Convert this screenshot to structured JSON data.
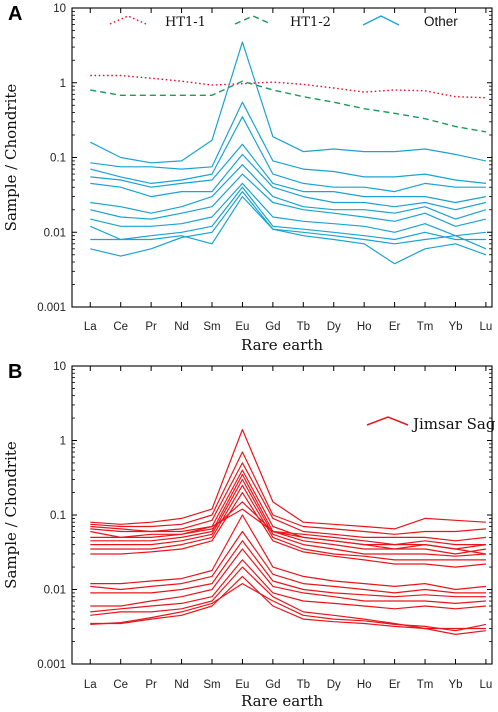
{
  "chart_data": [
    {
      "type": "line",
      "panel_label": "A",
      "title": "",
      "xlabel": "Rare earth",
      "ylabel": "Sample / Chondrite",
      "y_scale": "log",
      "ylim": [
        0.001,
        10
      ],
      "y_tick_labels": [
        "0.001",
        "0.01",
        "0.1",
        "1",
        "10"
      ],
      "grid": false,
      "legend_position": "top",
      "categories": [
        "La",
        "Ce",
        "Pr",
        "Nd",
        "Sm",
        "Eu",
        "Gd",
        "Tb",
        "Dy",
        "Ho",
        "Er",
        "Tm",
        "Yb",
        "Lu"
      ],
      "series": [
        {
          "name": "HT1-1",
          "color": "#e8102e",
          "dash": "dot",
          "show_in_legend": true,
          "values": [
            1.25,
            1.25,
            1.15,
            1.05,
            0.93,
            0.97,
            1.02,
            0.95,
            0.85,
            0.75,
            0.8,
            0.78,
            0.65,
            0.63
          ]
        },
        {
          "name": "HT1-2",
          "color": "#1c9a5a",
          "dash": "dash",
          "show_in_legend": true,
          "values": [
            0.8,
            0.68,
            0.68,
            0.68,
            0.68,
            1.05,
            0.8,
            0.65,
            0.55,
            0.45,
            0.39,
            0.33,
            0.26,
            0.22
          ]
        },
        {
          "name": "Other",
          "color": "#1aa3d4",
          "dash": "solid",
          "show_in_legend": true,
          "values": [
            0.16,
            0.1,
            0.085,
            0.09,
            0.17,
            3.5,
            0.19,
            0.12,
            0.13,
            0.12,
            0.12,
            0.13,
            0.11,
            0.09
          ]
        },
        {
          "name": "Other",
          "color": "#1aa3d4",
          "dash": "solid",
          "show_in_legend": false,
          "values": [
            0.085,
            0.075,
            0.075,
            0.07,
            0.075,
            0.55,
            0.09,
            0.07,
            0.065,
            0.055,
            0.055,
            0.06,
            0.05,
            0.045
          ]
        },
        {
          "name": "Other",
          "color": "#1aa3d4",
          "dash": "solid",
          "show_in_legend": false,
          "values": [
            0.07,
            0.055,
            0.045,
            0.05,
            0.06,
            0.35,
            0.06,
            0.045,
            0.04,
            0.04,
            0.035,
            0.045,
            0.04,
            0.04
          ]
        },
        {
          "name": "Other",
          "color": "#1aa3d4",
          "dash": "solid",
          "show_in_legend": false,
          "values": [
            0.055,
            0.05,
            0.04,
            0.045,
            0.05,
            0.15,
            0.045,
            0.035,
            0.035,
            0.03,
            0.03,
            0.03,
            0.025,
            0.03
          ]
        },
        {
          "name": "Other",
          "color": "#1aa3d4",
          "dash": "solid",
          "show_in_legend": false,
          "values": [
            0.045,
            0.04,
            0.03,
            0.035,
            0.035,
            0.11,
            0.04,
            0.03,
            0.025,
            0.025,
            0.022,
            0.025,
            0.02,
            0.025
          ]
        },
        {
          "name": "Other",
          "color": "#1aa3d4",
          "dash": "solid",
          "show_in_legend": false,
          "values": [
            0.025,
            0.022,
            0.018,
            0.022,
            0.03,
            0.08,
            0.03,
            0.022,
            0.02,
            0.02,
            0.018,
            0.022,
            0.015,
            0.02
          ]
        },
        {
          "name": "Other",
          "color": "#1aa3d4",
          "dash": "solid",
          "show_in_legend": false,
          "values": [
            0.02,
            0.016,
            0.015,
            0.018,
            0.022,
            0.06,
            0.025,
            0.02,
            0.018,
            0.016,
            0.014,
            0.018,
            0.012,
            0.015
          ]
        },
        {
          "name": "Other",
          "color": "#1aa3d4",
          "dash": "solid",
          "show_in_legend": false,
          "values": [
            0.015,
            0.012,
            0.012,
            0.013,
            0.016,
            0.045,
            0.016,
            0.014,
            0.013,
            0.012,
            0.01,
            0.013,
            0.009,
            0.01
          ]
        },
        {
          "name": "Other",
          "color": "#1aa3d4",
          "dash": "solid",
          "show_in_legend": false,
          "values": [
            0.012,
            0.008,
            0.009,
            0.01,
            0.012,
            0.04,
            0.012,
            0.011,
            0.01,
            0.009,
            0.008,
            0.01,
            0.008,
            0.008
          ]
        },
        {
          "name": "Other",
          "color": "#1aa3d4",
          "dash": "solid",
          "show_in_legend": false,
          "values": [
            0.008,
            0.008,
            0.008,
            0.009,
            0.007,
            0.03,
            0.011,
            0.009,
            0.008,
            0.007,
            0.0038,
            0.006,
            0.007,
            0.005
          ]
        },
        {
          "name": "Other",
          "color": "#1aa3d4",
          "dash": "solid",
          "show_in_legend": false,
          "values": [
            0.006,
            0.0048,
            0.006,
            0.0085,
            0.01,
            0.035,
            0.011,
            0.01,
            0.009,
            0.008,
            0.007,
            0.008,
            0.009,
            0.006
          ]
        }
      ]
    },
    {
      "type": "line",
      "panel_label": "B",
      "title": "",
      "xlabel": "Rare earth",
      "ylabel": "Sample / Chondrite",
      "y_scale": "log",
      "ylim": [
        0.001,
        10
      ],
      "y_tick_labels": [
        "0.001",
        "0.01",
        "0.1",
        "1",
        "10"
      ],
      "grid": false,
      "legend_position": "top-right",
      "categories": [
        "La",
        "Ce",
        "Pr",
        "Nd",
        "Sm",
        "Eu",
        "Gd",
        "Tb",
        "Dy",
        "Ho",
        "Er",
        "Tm",
        "Yb",
        "Lu"
      ],
      "series": [
        {
          "name": "Jimsar Sag",
          "color": "#e8161b",
          "dash": "solid",
          "show_in_legend": true,
          "values": [
            0.08,
            0.075,
            0.08,
            0.09,
            0.12,
            1.4,
            0.15,
            0.08,
            0.075,
            0.07,
            0.065,
            0.09,
            0.085,
            0.08
          ]
        },
        {
          "name": "Jimsar Sag",
          "color": "#e8161b",
          "dash": "solid",
          "show_in_legend": false,
          "values": [
            0.075,
            0.07,
            0.07,
            0.075,
            0.1,
            0.7,
            0.1,
            0.07,
            0.065,
            0.06,
            0.055,
            0.06,
            0.06,
            0.065
          ]
        },
        {
          "name": "Jimsar Sag",
          "color": "#e8161b",
          "dash": "solid",
          "show_in_legend": false,
          "values": [
            0.065,
            0.06,
            0.06,
            0.065,
            0.085,
            0.5,
            0.09,
            0.06,
            0.055,
            0.05,
            0.05,
            0.05,
            0.045,
            0.05
          ]
        },
        {
          "name": "Jimsar Sag",
          "color": "#e8161b",
          "dash": "solid",
          "show_in_legend": false,
          "values": [
            0.05,
            0.05,
            0.055,
            0.055,
            0.07,
            0.4,
            0.07,
            0.05,
            0.045,
            0.04,
            0.04,
            0.04,
            0.035,
            0.04
          ]
        },
        {
          "name": "Jimsar Sag",
          "color": "#e8161b",
          "dash": "solid",
          "show_in_legend": false,
          "values": [
            0.045,
            0.045,
            0.045,
            0.05,
            0.06,
            0.35,
            0.06,
            0.045,
            0.04,
            0.035,
            0.035,
            0.035,
            0.03,
            0.035
          ]
        },
        {
          "name": "Jimsar Sag",
          "color": "#e8161b",
          "dash": "solid",
          "show_in_legend": false,
          "values": [
            0.04,
            0.04,
            0.04,
            0.045,
            0.055,
            0.3,
            0.055,
            0.04,
            0.035,
            0.03,
            0.03,
            0.03,
            0.028,
            0.03
          ]
        },
        {
          "name": "Jimsar Sag",
          "color": "#e8161b",
          "dash": "solid",
          "show_in_legend": false,
          "values": [
            0.035,
            0.035,
            0.035,
            0.04,
            0.05,
            0.25,
            0.05,
            0.035,
            0.03,
            0.028,
            0.025,
            0.025,
            0.025,
            0.025
          ]
        },
        {
          "name": "Jimsar Sag",
          "color": "#e8161b",
          "dash": "solid",
          "show_in_legend": false,
          "values": [
            0.03,
            0.03,
            0.032,
            0.035,
            0.045,
            0.2,
            0.045,
            0.032,
            0.028,
            0.025,
            0.022,
            0.022,
            0.02,
            0.022
          ]
        },
        {
          "name": "Jimsar Sag",
          "color": "#e8161b",
          "dash": "solid",
          "show_in_legend": false,
          "values": [
            0.06,
            0.05,
            0.05,
            0.055,
            0.065,
            0.15,
            0.06,
            0.05,
            0.045,
            0.04,
            0.035,
            0.04,
            0.035,
            0.03
          ]
        },
        {
          "name": "Jimsar Sag",
          "color": "#e8161b",
          "dash": "solid",
          "show_in_legend": false,
          "values": [
            0.07,
            0.065,
            0.06,
            0.06,
            0.07,
            0.12,
            0.06,
            0.055,
            0.05,
            0.045,
            0.04,
            0.045,
            0.04,
            0.04
          ]
        },
        {
          "name": "Jimsar Sag",
          "color": "#e8161b",
          "dash": "solid",
          "show_in_legend": false,
          "values": [
            0.012,
            0.012,
            0.013,
            0.014,
            0.018,
            0.1,
            0.02,
            0.015,
            0.013,
            0.012,
            0.011,
            0.012,
            0.01,
            0.011
          ]
        },
        {
          "name": "Jimsar Sag",
          "color": "#e8161b",
          "dash": "solid",
          "show_in_legend": false,
          "values": [
            0.011,
            0.01,
            0.011,
            0.012,
            0.015,
            0.06,
            0.016,
            0.012,
            0.011,
            0.01,
            0.009,
            0.01,
            0.009,
            0.009
          ]
        },
        {
          "name": "Jimsar Sag",
          "color": "#e8161b",
          "dash": "solid",
          "show_in_legend": false,
          "values": [
            0.009,
            0.009,
            0.009,
            0.01,
            0.012,
            0.045,
            0.013,
            0.01,
            0.009,
            0.0085,
            0.008,
            0.0085,
            0.008,
            0.008
          ]
        },
        {
          "name": "Jimsar Sag",
          "color": "#e8161b",
          "dash": "solid",
          "show_in_legend": false,
          "values": [
            0.006,
            0.006,
            0.007,
            0.008,
            0.01,
            0.035,
            0.011,
            0.009,
            0.008,
            0.007,
            0.007,
            0.007,
            0.0065,
            0.007
          ]
        },
        {
          "name": "Jimsar Sag",
          "color": "#e8161b",
          "dash": "solid",
          "show_in_legend": false,
          "values": [
            0.005,
            0.0055,
            0.006,
            0.0065,
            0.008,
            0.025,
            0.009,
            0.007,
            0.0065,
            0.006,
            0.0055,
            0.006,
            0.0055,
            0.006
          ]
        },
        {
          "name": "Jimsar Sag",
          "color": "#e8161b",
          "dash": "solid",
          "show_in_legend": false,
          "values": [
            0.0045,
            0.005,
            0.005,
            0.0055,
            0.007,
            0.02,
            0.008,
            0.005,
            0.0045,
            0.004,
            0.0035,
            0.003,
            0.003,
            0.003
          ]
        },
        {
          "name": "Jimsar Sag",
          "color": "#e8161b",
          "dash": "solid",
          "show_in_legend": false,
          "values": [
            0.0035,
            0.0035,
            0.004,
            0.0045,
            0.006,
            0.015,
            0.006,
            0.004,
            0.0037,
            0.0035,
            0.0032,
            0.003,
            0.0025,
            0.0028
          ]
        },
        {
          "name": "Jimsar Sag",
          "color": "#e8161b",
          "dash": "solid",
          "show_in_legend": false,
          "values": [
            0.0034,
            0.0036,
            0.0042,
            0.005,
            0.0065,
            0.012,
            0.007,
            0.0045,
            0.004,
            0.0038,
            0.0034,
            0.0032,
            0.0028,
            0.0034
          ]
        }
      ]
    }
  ]
}
